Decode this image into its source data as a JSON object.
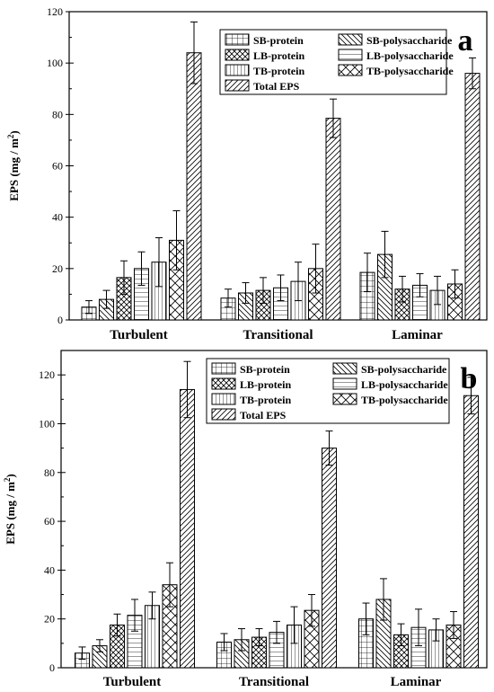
{
  "chart_data": [
    {
      "type": "bar",
      "panel_label": "a",
      "categories": [
        "Turbulent",
        "Transitional",
        "Laminar"
      ],
      "ylabel_main": "EPS (mg / m",
      "ylabel_sup": "2",
      "ylabel_tail": ")",
      "ylim": [
        0,
        120
      ],
      "yticks": [
        0,
        20,
        40,
        60,
        80,
        100,
        120
      ],
      "legend_position": "top-right",
      "series": [
        {
          "name": "SB-protein",
          "pattern": "grid",
          "values": [
            5,
            8.5,
            18.5
          ],
          "errors": [
            2.5,
            3.5,
            7.5
          ]
        },
        {
          "name": "SB-polysaccharide",
          "pattern": "backslash",
          "values": [
            8,
            10.5,
            25.5
          ],
          "errors": [
            3.5,
            4,
            9
          ]
        },
        {
          "name": "LB-protein",
          "pattern": "crosshatch",
          "values": [
            16.5,
            11.5,
            12
          ],
          "errors": [
            6.5,
            5,
            5
          ]
        },
        {
          "name": "LB-polysaccharide",
          "pattern": "horizontal",
          "values": [
            20,
            12.5,
            13.5
          ],
          "errors": [
            6.5,
            5,
            4.5
          ]
        },
        {
          "name": "TB-protein",
          "pattern": "vertical",
          "values": [
            22.5,
            15,
            11.5
          ],
          "errors": [
            9.5,
            7.5,
            5.5
          ]
        },
        {
          "name": "TB-polysaccharide",
          "pattern": "diamond",
          "values": [
            31,
            20,
            14
          ],
          "errors": [
            11.5,
            9.5,
            5.5
          ]
        },
        {
          "name": "Total EPS",
          "pattern": "slash",
          "values": [
            104,
            78.5,
            96
          ],
          "errors": [
            12,
            7.5,
            6
          ]
        }
      ]
    },
    {
      "type": "bar",
      "panel_label": "b",
      "categories": [
        "Turbulent",
        "Transitional",
        "Laminar"
      ],
      "ylabel_main": "EPS (mg / m",
      "ylabel_sup": "2",
      "ylabel_tail": ")",
      "ylim": [
        0,
        130
      ],
      "yticks": [
        0,
        20,
        40,
        60,
        80,
        100,
        120
      ],
      "legend_position": "top-right",
      "series": [
        {
          "name": "SB-protein",
          "pattern": "grid",
          "values": [
            6,
            10.5,
            20
          ],
          "errors": [
            2.5,
            3.5,
            6.5
          ]
        },
        {
          "name": "SB-polysaccharide",
          "pattern": "backslash",
          "values": [
            9,
            11.5,
            28
          ],
          "errors": [
            2.5,
            4.5,
            8.5
          ]
        },
        {
          "name": "LB-protein",
          "pattern": "crosshatch",
          "values": [
            17.5,
            12.5,
            13.5
          ],
          "errors": [
            4.5,
            3.5,
            4.5
          ]
        },
        {
          "name": "LB-polysaccharide",
          "pattern": "horizontal",
          "values": [
            21.5,
            14.5,
            16.5
          ],
          "errors": [
            6.5,
            4.5,
            7.5
          ]
        },
        {
          "name": "TB-protein",
          "pattern": "vertical",
          "values": [
            25.5,
            17.5,
            15.5
          ],
          "errors": [
            5.5,
            7.5,
            4.5
          ]
        },
        {
          "name": "TB-polysaccharide",
          "pattern": "diamond",
          "values": [
            34,
            23.5,
            17.5
          ],
          "errors": [
            9,
            6.5,
            5.5
          ]
        },
        {
          "name": "Total EPS",
          "pattern": "slash",
          "values": [
            114,
            90,
            111.5
          ],
          "errors": [
            11.5,
            7,
            7.5
          ]
        }
      ]
    }
  ]
}
